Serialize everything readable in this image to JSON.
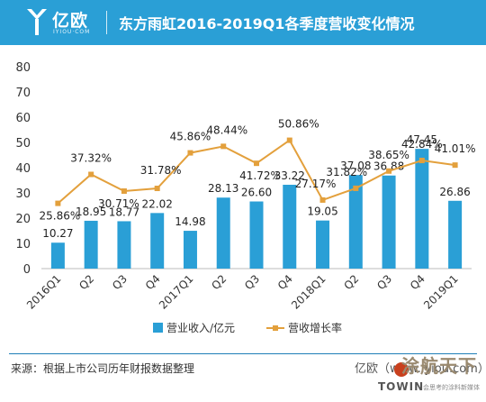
{
  "header": {
    "logo_text": "亿欧",
    "logo_sub": "IYIOU·COM",
    "title": "东方雨虹2016-2019Q1各季度营收变化情况"
  },
  "chart_data": {
    "type": "bar",
    "categories": [
      "2016Q1",
      "Q2",
      "Q3",
      "Q4",
      "2017Q1",
      "Q2",
      "Q3",
      "Q4",
      "2018Q1",
      "Q2",
      "Q3",
      "Q4",
      "2019Q1"
    ],
    "series": [
      {
        "name": "营业收入/亿元",
        "type": "bar",
        "values": [
          10.27,
          18.95,
          18.77,
          22.02,
          14.98,
          28.13,
          26.6,
          33.22,
          19.05,
          37.08,
          36.88,
          47.45,
          26.86
        ],
        "labels": [
          "10.27",
          "18.95",
          "18.77",
          "22.02",
          "14.98",
          "28.13",
          "26.60",
          "33.22",
          "19.05",
          "37.08",
          "36.88",
          "47.45",
          "26.86"
        ]
      },
      {
        "name": "营收增长率",
        "type": "line",
        "values": [
          25.86,
          37.32,
          30.71,
          31.78,
          45.86,
          48.44,
          41.72,
          50.86,
          27.17,
          31.82,
          38.65,
          42.84,
          41.01
        ],
        "labels": [
          "25.86%",
          "37.32%",
          "30.71%",
          "31.78%",
          "45.86%",
          "48.44%",
          "41.72%",
          "50.86%",
          "27.17%",
          "31.82%",
          "38.65%",
          "42.84%",
          "41.01%"
        ]
      }
    ],
    "ylim": [
      0,
      80
    ],
    "yticks": [
      "0",
      "10",
      "20",
      "30",
      "40",
      "50",
      "60",
      "70",
      "80"
    ],
    "grid": false,
    "legend": "bottom-center",
    "colors": {
      "bar": "#2a9fd6",
      "line": "#e3a03c"
    }
  },
  "footer": {
    "source": "来源：根据上市公司历年财报数据整理",
    "watermark_logo": "亿欧（www.iyiou.com）",
    "watermark_art": "涂航天下",
    "watermark_brand": "TOWIN",
    "watermark_slogan": "会思考的涂料新媒体"
  }
}
